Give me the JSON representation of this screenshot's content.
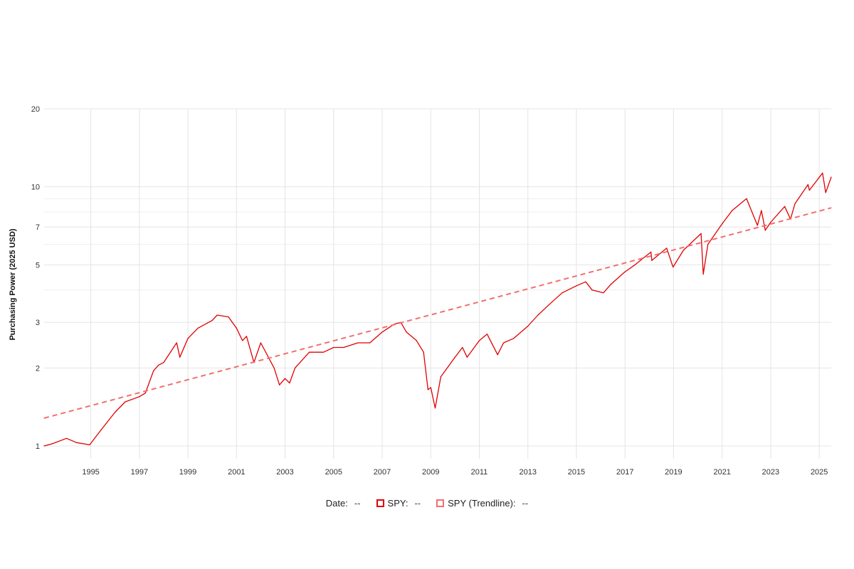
{
  "chart_data": {
    "type": "line",
    "title": "",
    "xlabel": "",
    "ylabel": "Purchasing Power (2025 USD)",
    "y_scale": "log",
    "ylim": [
      0.9,
      20
    ],
    "xlim": [
      "1993-01-29",
      "2025-06-30"
    ],
    "y_ticks": [
      1,
      2,
      3,
      5,
      7,
      10,
      20
    ],
    "x_ticks": [
      "1995",
      "1997",
      "1999",
      "2001",
      "2003",
      "2005",
      "2007",
      "2009",
      "2011",
      "2013",
      "2015",
      "2017",
      "2019",
      "2021",
      "2023",
      "2025"
    ],
    "grid": true,
    "legend_position": "bottom-center",
    "series": [
      {
        "name": "SPY",
        "style": "solid",
        "color": "#e00000",
        "x": [
          "1993-01-29",
          "1993-06-01",
          "1994-01-01",
          "1994-06-01",
          "1994-12-15",
          "1995-06-01",
          "1996-01-01",
          "1996-06-01",
          "1997-01-01",
          "1997-04-01",
          "1997-08-01",
          "1997-10-15",
          "1998-01-01",
          "1998-07-15",
          "1998-09-01",
          "1999-01-01",
          "1999-06-01",
          "2000-01-01",
          "2000-03-15",
          "2000-09-01",
          "2001-01-01",
          "2001-04-01",
          "2001-06-01",
          "2001-09-20",
          "2002-01-01",
          "2002-07-20",
          "2002-10-09",
          "2003-01-01",
          "2003-03-10",
          "2003-06-01",
          "2004-01-01",
          "2004-08-01",
          "2005-01-01",
          "2005-06-01",
          "2006-01-01",
          "2006-07-01",
          "2007-01-01",
          "2007-07-01",
          "2007-10-09",
          "2008-01-01",
          "2008-06-01",
          "2008-09-15",
          "2008-11-20",
          "2009-01-01",
          "2009-03-09",
          "2009-06-01",
          "2010-01-01",
          "2010-04-23",
          "2010-07-01",
          "2011-01-01",
          "2011-04-29",
          "2011-10-03",
          "2012-01-01",
          "2012-06-01",
          "2013-01-01",
          "2013-06-01",
          "2014-01-01",
          "2014-06-01",
          "2015-01-01",
          "2015-05-21",
          "2015-08-25",
          "2016-02-11",
          "2016-06-01",
          "2017-01-01",
          "2017-06-01",
          "2018-01-26",
          "2018-02-08",
          "2018-09-20",
          "2018-12-24",
          "2019-06-01",
          "2020-02-19",
          "2020-03-23",
          "2020-06-01",
          "2021-01-01",
          "2021-06-01",
          "2022-01-03",
          "2022-06-16",
          "2022-08-15",
          "2022-10-12",
          "2023-01-01",
          "2023-07-31",
          "2023-10-27",
          "2024-01-01",
          "2024-07-16",
          "2024-08-05",
          "2025-02-19",
          "2025-04-08",
          "2025-06-30"
        ],
        "values": [
          1.0,
          1.02,
          1.07,
          1.03,
          1.01,
          1.15,
          1.35,
          1.48,
          1.55,
          1.6,
          1.95,
          2.05,
          2.1,
          2.5,
          2.2,
          2.6,
          2.85,
          3.05,
          3.2,
          3.15,
          2.85,
          2.55,
          2.65,
          2.1,
          2.5,
          2.0,
          1.72,
          1.82,
          1.75,
          2.0,
          2.3,
          2.3,
          2.4,
          2.4,
          2.5,
          2.5,
          2.75,
          2.95,
          3.0,
          2.75,
          2.55,
          2.3,
          1.65,
          1.68,
          1.4,
          1.85,
          2.2,
          2.4,
          2.2,
          2.55,
          2.7,
          2.25,
          2.5,
          2.6,
          2.9,
          3.2,
          3.6,
          3.9,
          4.15,
          4.3,
          4.0,
          3.9,
          4.2,
          4.7,
          5.0,
          5.6,
          5.2,
          5.8,
          4.9,
          5.7,
          6.6,
          4.6,
          6.0,
          7.2,
          8.1,
          9.0,
          7.1,
          8.1,
          6.8,
          7.3,
          8.4,
          7.5,
          8.6,
          10.2,
          9.7,
          11.3,
          9.5,
          10.9
        ]
      },
      {
        "name": "SPY (Trendline)",
        "style": "dashed",
        "color": "#f07070",
        "x": [
          "1993-01-29",
          "2025-06-30"
        ],
        "values": [
          1.28,
          8.3
        ]
      }
    ]
  },
  "legend": {
    "date_label": "Date:",
    "date_value": "--",
    "spy_label": "SPY:",
    "spy_value": "--",
    "trend_label": "SPY (Trendline):",
    "trend_value": "--"
  },
  "colors": {
    "series_main": "#e00000",
    "series_trend": "#f07070",
    "grid": "#e4e4e4"
  }
}
